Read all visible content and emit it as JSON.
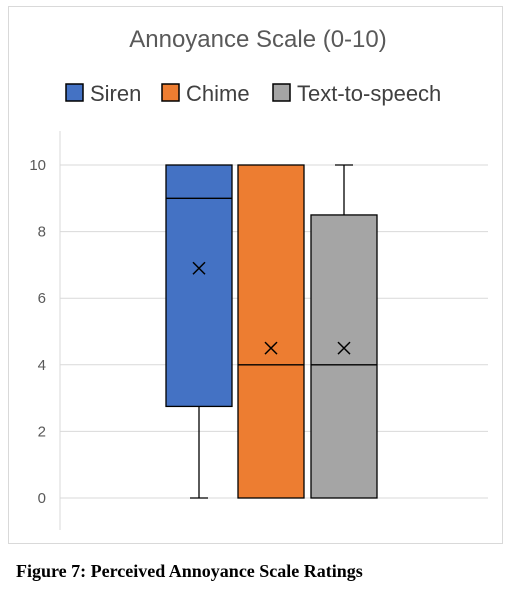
{
  "caption": "Figure 7: Perceived Annoyance Scale Ratings",
  "chart_data": {
    "type": "box",
    "title": "Annoyance Scale (0-10)",
    "xlabel": "",
    "ylabel": "",
    "ylim": [
      0,
      10
    ],
    "yticks": [
      0,
      2,
      4,
      6,
      8,
      10
    ],
    "grid": true,
    "legend_position": "top",
    "series": [
      {
        "name": "Siren",
        "color": "#4472C4",
        "min": 0,
        "q1": 2.75,
        "median": 9,
        "q3": 10,
        "max": 10,
        "mean": 6.9
      },
      {
        "name": "Chime",
        "color": "#ED7D31",
        "min": 0,
        "q1": 0,
        "median": 4,
        "q3": 10,
        "max": 10,
        "mean": 4.5
      },
      {
        "name": "Text-to-speech",
        "color": "#A5A5A5",
        "min": 0,
        "q1": 0,
        "median": 4,
        "q3": 8.5,
        "max": 10,
        "mean": 4.5
      }
    ]
  }
}
